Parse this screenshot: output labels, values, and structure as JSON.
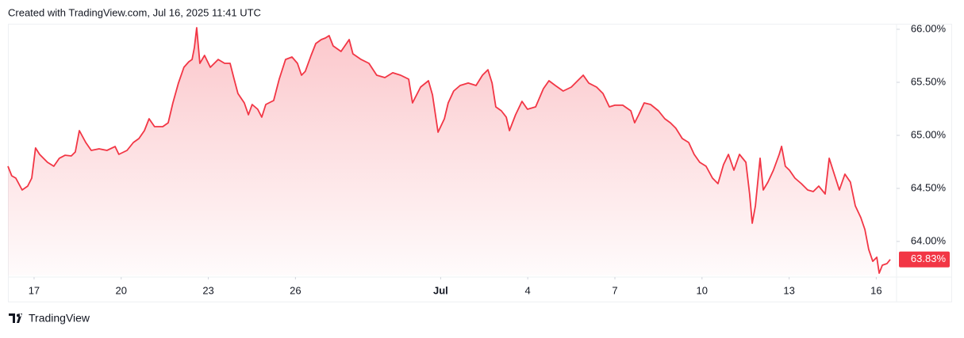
{
  "header": "Created with TradingView.com, Jul 16, 2025 11:41 UTC",
  "footer": "TradingView",
  "chart_data": {
    "type": "area",
    "color": "#f23645",
    "x": [
      -0.9,
      -0.77,
      -0.63,
      -0.41,
      -0.22,
      -0.08,
      0.05,
      0.19,
      0.46,
      0.68,
      0.87,
      1.07,
      1.28,
      1.42,
      1.56,
      1.78,
      1.97,
      2.24,
      2.51,
      2.79,
      2.92,
      3.2,
      3.42,
      3.61,
      3.8,
      3.96,
      4.15,
      4.43,
      4.62,
      4.78,
      4.97,
      5.16,
      5.33,
      5.44,
      5.52,
      5.6,
      5.71,
      5.87,
      6.07,
      6.34,
      6.56,
      6.75,
      6.89,
      7.02,
      7.24,
      7.38,
      7.51,
      7.7,
      7.84,
      7.98,
      8.25,
      8.44,
      8.66,
      8.88,
      9.07,
      9.21,
      9.34,
      9.54,
      9.7,
      9.89,
      10.03,
      10.16,
      10.3,
      10.57,
      10.85,
      10.98,
      11.26,
      11.53,
      11.8,
      12.08,
      12.35,
      12.62,
      12.9,
      13.03,
      13.31,
      13.58,
      13.72,
      13.91,
      14.13,
      14.26,
      14.45,
      14.67,
      14.95,
      15.22,
      15.44,
      15.63,
      15.77,
      15.9,
      16.09,
      16.26,
      16.37,
      16.58,
      16.8,
      16.99,
      17.27,
      17.54,
      17.73,
      17.95,
      18.22,
      18.5,
      18.77,
      18.91,
      19.1,
      19.37,
      19.59,
      19.81,
      20.0,
      20.27,
      20.55,
      20.68,
      20.82,
      21.01,
      21.23,
      21.5,
      21.72,
      21.91,
      22.1,
      22.32,
      22.54,
      22.73,
      22.92,
      23.14,
      23.36,
      23.55,
      23.74,
      23.91,
      24.1,
      24.29,
      24.51,
      24.64,
      24.73,
      24.84,
      25.0,
      25.11,
      25.27,
      25.46,
      25.66,
      25.74,
      25.87,
      26.01,
      26.2,
      26.42,
      26.64,
      26.83,
      27.02,
      27.24,
      27.38,
      27.51,
      27.73,
      27.92,
      28.11,
      28.28,
      28.47,
      28.61,
      28.74,
      28.88,
      29.02,
      29.1,
      29.21,
      29.37,
      29.48
    ],
    "values": [
      64.709,
      64.619,
      64.597,
      64.485,
      64.522,
      64.597,
      64.881,
      64.821,
      64.746,
      64.709,
      64.784,
      64.813,
      64.806,
      64.843,
      65.045,
      64.933,
      64.858,
      64.873,
      64.858,
      64.895,
      64.821,
      64.858,
      64.933,
      64.97,
      65.045,
      65.157,
      65.082,
      65.082,
      65.119,
      65.306,
      65.493,
      65.642,
      65.694,
      65.716,
      65.828,
      66.015,
      65.679,
      65.754,
      65.642,
      65.716,
      65.679,
      65.679,
      65.53,
      65.395,
      65.306,
      65.194,
      65.291,
      65.246,
      65.172,
      65.291,
      65.328,
      65.53,
      65.716,
      65.739,
      65.679,
      65.567,
      65.604,
      65.754,
      65.866,
      65.903,
      65.918,
      65.94,
      65.843,
      65.791,
      65.903,
      65.769,
      65.716,
      65.679,
      65.567,
      65.545,
      65.59,
      65.567,
      65.53,
      65.306,
      65.455,
      65.515,
      65.381,
      65.03,
      65.157,
      65.306,
      65.418,
      65.47,
      65.493,
      65.47,
      65.567,
      65.619,
      65.493,
      65.269,
      65.231,
      65.172,
      65.045,
      65.194,
      65.321,
      65.246,
      65.269,
      65.44,
      65.515,
      65.47,
      65.418,
      65.455,
      65.53,
      65.567,
      65.493,
      65.455,
      65.395,
      65.269,
      65.284,
      65.284,
      65.231,
      65.119,
      65.194,
      65.306,
      65.291,
      65.231,
      65.157,
      65.119,
      65.067,
      64.97,
      64.933,
      64.821,
      64.746,
      64.709,
      64.597,
      64.545,
      64.724,
      64.821,
      64.672,
      64.821,
      64.746,
      64.448,
      64.172,
      64.336,
      64.784,
      64.485,
      64.56,
      64.672,
      64.821,
      64.896,
      64.709,
      64.672,
      64.597,
      64.545,
      64.485,
      64.47,
      64.522,
      64.448,
      64.784,
      64.672,
      64.485,
      64.634,
      64.56,
      64.336,
      64.224,
      64.112,
      63.925,
      63.813,
      63.851,
      63.701,
      63.776,
      63.791,
      63.83
    ],
    "last_value": {
      "value": 63.83,
      "label": "63.83%"
    },
    "xlim": [
      -0.9,
      29.6
    ],
    "xticks": [
      {
        "value": 0,
        "label": "17"
      },
      {
        "value": 3,
        "label": "20"
      },
      {
        "value": 6,
        "label": "23"
      },
      {
        "value": 9,
        "label": "26"
      },
      {
        "value": 14,
        "label": "Jul"
      },
      {
        "value": 17,
        "label": "4"
      },
      {
        "value": 20,
        "label": "7"
      },
      {
        "value": 23,
        "label": "10"
      },
      {
        "value": 26,
        "label": "13"
      },
      {
        "value": 29,
        "label": "16"
      }
    ],
    "ylim": [
      63.68,
      66.05
    ],
    "yticks": [
      {
        "value": 64,
        "label": "64.00%"
      },
      {
        "value": 64.5,
        "label": "64.50%"
      },
      {
        "value": 65,
        "label": "65.00%"
      },
      {
        "value": 65.5,
        "label": "65.50%"
      },
      {
        "value": 66,
        "label": "66.00%"
      }
    ],
    "grid": false
  }
}
